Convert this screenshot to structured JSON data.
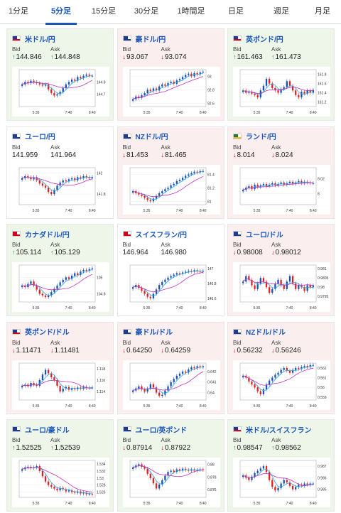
{
  "tabs": [
    {
      "label": "1分足",
      "active": false
    },
    {
      "label": "5分足",
      "active": true
    },
    {
      "label": "15分足",
      "active": false
    },
    {
      "label": "30分足",
      "active": false
    },
    {
      "label": "1時間足",
      "active": false
    },
    {
      "label": "日足",
      "active": false
    },
    {
      "label": "週足",
      "active": false
    },
    {
      "label": "月足",
      "active": false
    }
  ],
  "bid_label": "Bid",
  "ask_label": "Ask",
  "x_ticks": [
    "5:35",
    "7:40",
    "8:40"
  ],
  "colors": {
    "bull": "#1a4fb4",
    "bear": "#e02020",
    "ma_fast": "#2aa8e0",
    "ma_slow": "#c030c0",
    "up_bg": "#eef6ea",
    "down_bg": "#fbeeee",
    "accent": "#1a56b8"
  },
  "cards": [
    {
      "pair": "米ドル/円",
      "flag": "us",
      "tone": "up",
      "bid_dir": "up",
      "ask_dir": "up",
      "bid": "144.846",
      "ask": "144.848",
      "chart_data": {
        "type": "candlestick",
        "y_ticks": [
          "144.8",
          "144.7"
        ],
        "ylim": [
          144.6,
          144.9
        ],
        "closes": [
          144.78,
          144.8,
          144.79,
          144.81,
          144.8,
          144.79,
          144.78,
          144.77,
          144.78,
          144.74,
          144.71,
          144.69,
          144.7,
          144.72,
          144.75,
          144.78,
          144.8,
          144.82,
          144.81,
          144.84,
          144.83,
          144.85,
          144.86,
          144.85,
          144.85
        ]
      }
    },
    {
      "pair": "豪ドル/円",
      "flag": "au",
      "tone": "down",
      "bid_dir": "down",
      "ask_dir": "down",
      "bid": "93.067",
      "ask": "93.074",
      "chart_data": {
        "type": "candlestick",
        "y_ticks": [
          "93",
          "92.8",
          "92.6"
        ],
        "ylim": [
          92.55,
          93.1
        ],
        "closes": [
          92.66,
          92.7,
          92.68,
          92.72,
          92.75,
          92.8,
          92.78,
          92.82,
          92.79,
          92.85,
          92.88,
          92.86,
          92.9,
          92.92,
          92.89,
          92.94,
          92.96,
          92.99,
          93.02,
          93.04,
          93.0,
          93.05,
          93.03,
          93.06,
          93.07
        ]
      }
    },
    {
      "pair": "英ポンド/円",
      "flag": "gb",
      "tone": "up",
      "bid_dir": "up",
      "ask_dir": "up",
      "bid": "161.463",
      "ask": "161.473",
      "chart_data": {
        "type": "candlestick",
        "y_ticks": [
          "161.8",
          "161.6",
          "161.4",
          "161.2"
        ],
        "ylim": [
          161.1,
          161.9
        ],
        "closes": [
          161.45,
          161.4,
          161.42,
          161.38,
          161.35,
          161.3,
          161.45,
          161.55,
          161.7,
          161.6,
          161.5,
          161.45,
          161.4,
          161.48,
          161.52,
          161.65,
          161.55,
          161.45,
          161.35,
          161.3,
          161.42,
          161.38,
          161.45,
          161.4,
          161.46
        ]
      }
    },
    {
      "pair": "ユーロ/円",
      "flag": "eu",
      "tone": "neutral",
      "bid_dir": "",
      "ask_dir": "",
      "bid": "141.959",
      "ask": "141.964",
      "chart_data": {
        "type": "candlestick",
        "y_ticks": [
          "142",
          "141.8"
        ],
        "ylim": [
          141.7,
          142.05
        ],
        "closes": [
          141.95,
          141.97,
          141.96,
          141.94,
          141.96,
          141.93,
          141.9,
          141.88,
          141.86,
          141.82,
          141.8,
          141.84,
          141.88,
          141.91,
          141.93,
          141.92,
          141.94,
          141.95,
          141.93,
          141.96,
          141.95,
          141.97,
          141.96,
          141.95,
          141.96
        ]
      }
    },
    {
      "pair": "NZドル/円",
      "flag": "nz",
      "tone": "down",
      "bid_dir": "down",
      "ask_dir": "down",
      "bid": "81.453",
      "ask": "81.465",
      "chart_data": {
        "type": "candlestick",
        "y_ticks": [
          "81.4",
          "81.2",
          "81"
        ],
        "ylim": [
          80.95,
          81.5
        ],
        "closes": [
          81.15,
          81.12,
          81.1,
          81.08,
          81.05,
          81.02,
          81.0,
          81.04,
          81.08,
          81.12,
          81.15,
          81.18,
          81.2,
          81.24,
          81.26,
          81.3,
          81.32,
          81.35,
          81.38,
          81.4,
          81.42,
          81.44,
          81.43,
          81.45,
          81.45
        ]
      }
    },
    {
      "pair": "ランド/円",
      "flag": "za",
      "tone": "down",
      "bid_dir": "down",
      "ask_dir": "down",
      "bid": "8.014",
      "ask": "8.024",
      "chart_data": {
        "type": "candlestick",
        "y_ticks": [
          "8.02",
          "8"
        ],
        "ylim": [
          7.985,
          8.035
        ],
        "closes": [
          8.005,
          8.008,
          8.01,
          8.006,
          8.012,
          8.009,
          8.011,
          8.013,
          8.01,
          8.012,
          8.014,
          8.011,
          8.013,
          8.015,
          8.012,
          8.014,
          8.016,
          8.013,
          8.015,
          8.017,
          8.014,
          8.016,
          8.015,
          8.014,
          8.014
        ]
      }
    },
    {
      "pair": "カナダドル/円",
      "flag": "ca",
      "tone": "up",
      "bid_dir": "up",
      "ask_dir": "up",
      "bid": "105.114",
      "ask": "105.129",
      "chart_data": {
        "type": "candlestick",
        "y_ticks": [
          "105",
          "104.8"
        ],
        "ylim": [
          104.7,
          105.15
        ],
        "closes": [
          104.9,
          104.88,
          104.92,
          104.95,
          104.9,
          104.85,
          104.8,
          104.78,
          104.76,
          104.78,
          104.82,
          104.86,
          104.9,
          104.94,
          104.97,
          105.0,
          104.98,
          105.02,
          105.05,
          105.03,
          105.07,
          105.09,
          105.08,
          105.1,
          105.11
        ]
      }
    },
    {
      "pair": "スイスフラン/円",
      "flag": "ch",
      "tone": "neutral",
      "bid_dir": "",
      "ask_dir": "",
      "bid": "146.964",
      "ask": "146.980",
      "chart_data": {
        "type": "candlestick",
        "y_ticks": [
          "147",
          "146.8",
          "146.6"
        ],
        "ylim": [
          146.55,
          147.05
        ],
        "closes": [
          146.75,
          146.78,
          146.74,
          146.7,
          146.66,
          146.62,
          146.6,
          146.66,
          146.72,
          146.78,
          146.82,
          146.85,
          146.88,
          146.9,
          146.92,
          146.94,
          146.93,
          146.95,
          146.96,
          146.97,
          146.96,
          146.98,
          146.97,
          146.96,
          146.97
        ]
      }
    },
    {
      "pair": "ユーロ/ドル",
      "flag": "eu",
      "tone": "down",
      "bid_dir": "down",
      "ask_dir": "down",
      "bid": "0.98008",
      "ask": "0.98012",
      "chart_data": {
        "type": "candlestick",
        "y_ticks": [
          "0.981",
          "0.9805",
          "0.98",
          "0.9795"
        ],
        "ylim": [
          0.9792,
          0.9812
        ],
        "closes": [
          0.9803,
          0.9806,
          0.9804,
          0.9801,
          0.9799,
          0.9802,
          0.9805,
          0.9803,
          0.98,
          0.9797,
          0.9799,
          0.9802,
          0.9804,
          0.9801,
          0.9799,
          0.9803,
          0.9806,
          0.9802,
          0.9799,
          0.9801,
          0.98,
          0.9798,
          0.9801,
          0.98,
          0.9801
        ]
      }
    },
    {
      "pair": "英ポンド/ドル",
      "flag": "gb",
      "tone": "down",
      "bid_dir": "down",
      "ask_dir": "down",
      "bid": "1.11471",
      "ask": "1.11481",
      "chart_data": {
        "type": "candlestick",
        "y_ticks": [
          "1.118",
          "1.116",
          "1.114"
        ],
        "ylim": [
          1.1125,
          1.119
        ],
        "closes": [
          1.115,
          1.1152,
          1.1149,
          1.1155,
          1.1152,
          1.115,
          1.116,
          1.117,
          1.1178,
          1.1172,
          1.1165,
          1.116,
          1.115,
          1.114,
          1.1145,
          1.1148,
          1.1143,
          1.1146,
          1.1144,
          1.1147,
          1.1145,
          1.1148,
          1.1146,
          1.1147,
          1.1147
        ]
      }
    },
    {
      "pair": "豪ドル/ドル",
      "flag": "au",
      "tone": "down",
      "bid_dir": "down",
      "ask_dir": "down",
      "bid": "0.64250",
      "ask": "0.64259",
      "chart_data": {
        "type": "candlestick",
        "y_ticks": [
          "0.642",
          "0.641",
          "0.64"
        ],
        "ylim": [
          0.6393,
          0.6428
        ],
        "closes": [
          0.6402,
          0.6404,
          0.6406,
          0.6403,
          0.6401,
          0.6404,
          0.6408,
          0.6405,
          0.64,
          0.6397,
          0.6398,
          0.6402,
          0.6406,
          0.641,
          0.6413,
          0.6416,
          0.6418,
          0.642,
          0.6419,
          0.6422,
          0.6424,
          0.6423,
          0.6425,
          0.6424,
          0.6425
        ]
      }
    },
    {
      "pair": "NZドル/ドル",
      "flag": "nz",
      "tone": "down",
      "bid_dir": "down",
      "ask_dir": "down",
      "bid": "0.56232",
      "ask": "0.56246",
      "chart_data": {
        "type": "candlestick",
        "y_ticks": [
          "0.562",
          "0.561",
          "0.56",
          "0.559"
        ],
        "ylim": [
          0.5587,
          0.5625
        ],
        "closes": [
          0.5612,
          0.561,
          0.5606,
          0.5603,
          0.56,
          0.5596,
          0.5593,
          0.5598,
          0.5603,
          0.5607,
          0.561,
          0.5613,
          0.5615,
          0.5618,
          0.562,
          0.5617,
          0.5615,
          0.5618,
          0.562,
          0.5619,
          0.5621,
          0.5622,
          0.5621,
          0.5623,
          0.5623
        ]
      }
    },
    {
      "pair": "ユーロ/豪ドル",
      "flag": "eu",
      "tone": "up",
      "bid_dir": "up",
      "ask_dir": "up",
      "bid": "1.52525",
      "ask": "1.52539",
      "chart_data": {
        "type": "candlestick",
        "y_ticks": [
          "1.534",
          "1.532",
          "1.53",
          "1.528",
          "1.526"
        ],
        "ylim": [
          1.5245,
          1.535
        ],
        "closes": [
          1.5325,
          1.533,
          1.5332,
          1.5328,
          1.533,
          1.5334,
          1.532,
          1.5305,
          1.529,
          1.528,
          1.5275,
          1.527,
          1.5265,
          1.5272,
          1.5268,
          1.5262,
          1.5265,
          1.526,
          1.5258,
          1.5262,
          1.5256,
          1.5258,
          1.5254,
          1.5255,
          1.5253
        ]
      }
    },
    {
      "pair": "ユーロ/英ポンド",
      "flag": "eu",
      "tone": "up",
      "bid_dir": "down",
      "ask_dir": "down",
      "bid": "0.87914",
      "ask": "0.87922",
      "chart_data": {
        "type": "candlestick",
        "y_ticks": [
          "0.88",
          "0.878",
          "0.876"
        ],
        "ylim": [
          0.8748,
          0.8806
        ],
        "closes": [
          0.8795,
          0.8798,
          0.88,
          0.8796,
          0.8793,
          0.8785,
          0.8778,
          0.877,
          0.8762,
          0.8768,
          0.8775,
          0.8782,
          0.8788,
          0.879,
          0.8788,
          0.8792,
          0.879,
          0.8793,
          0.8791,
          0.879,
          0.8792,
          0.879,
          0.8791,
          0.8792,
          0.8791
        ]
      }
    },
    {
      "pair": "米ドル/スイスフラン",
      "flag": "us",
      "tone": "up",
      "bid_dir": "up",
      "ask_dir": "up",
      "bid": "0.98547",
      "ask": "0.98562",
      "chart_data": {
        "type": "candlestick",
        "y_ticks": [
          "0.987",
          "0.986",
          "0.985"
        ],
        "ylim": [
          0.9843,
          0.9875
        ],
        "closes": [
          0.9862,
          0.986,
          0.9858,
          0.9861,
          0.9864,
          0.9866,
          0.9868,
          0.987,
          0.9865,
          0.9858,
          0.9852,
          0.9849,
          0.9851,
          0.9855,
          0.9858,
          0.9856,
          0.9853,
          0.985,
          0.9852,
          0.9854,
          0.9853,
          0.9855,
          0.9854,
          0.9855,
          0.9855
        ]
      }
    }
  ]
}
